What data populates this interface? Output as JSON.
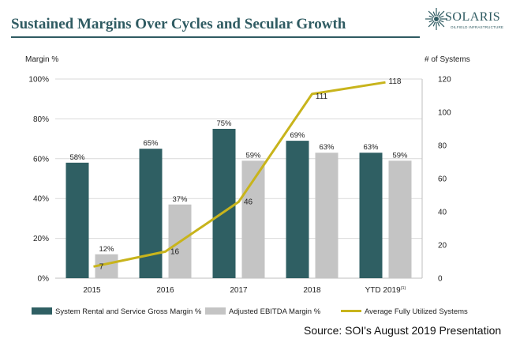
{
  "page": {
    "title": "Sustained Margins Over Cycles and Secular Growth",
    "source": "Source: SOI's August 2019 Presentation"
  },
  "logo": {
    "wordmark": "SOLARIS",
    "tagline": "OILFIELD INFRASTRUCTURE",
    "icon": "sunburst-icon",
    "color": "#2f5b62"
  },
  "chart_data": {
    "type": "bar",
    "categories": [
      "2015",
      "2016",
      "2017",
      "2018",
      "YTD 2019"
    ],
    "category_footnote": "(1)",
    "ylabel_left": "Margin %",
    "ylabel_right": "# of Systems",
    "ylim_left": [
      0,
      100
    ],
    "ylim_right": [
      0,
      120
    ],
    "yticks_left": [
      "0%",
      "20%",
      "40%",
      "60%",
      "80%",
      "100%"
    ],
    "yticks_right": [
      "0",
      "20",
      "40",
      "60",
      "80",
      "100",
      "120"
    ],
    "grid": true,
    "legend_position": "bottom",
    "series": [
      {
        "name": "System Rental and Service Gross Margin %",
        "type": "bar",
        "axis": "left",
        "color": "#2f5f63",
        "values": [
          58,
          65,
          75,
          69,
          63
        ],
        "labels": [
          "58%",
          "65%",
          "75%",
          "69%",
          "63%"
        ]
      },
      {
        "name": "Adjusted EBITDA Margin %",
        "type": "bar",
        "axis": "left",
        "color": "#c4c4c4",
        "values": [
          12,
          37,
          59,
          63,
          59
        ],
        "labels": [
          "12%",
          "37%",
          "59%",
          "63%",
          "59%"
        ]
      },
      {
        "name": "Average Fully Utilized Systems",
        "type": "line",
        "axis": "right",
        "color": "#c8b41c",
        "values": [
          7,
          16,
          46,
          111,
          118
        ],
        "labels": [
          "7",
          "16",
          "46",
          "111",
          "118"
        ]
      }
    ]
  }
}
